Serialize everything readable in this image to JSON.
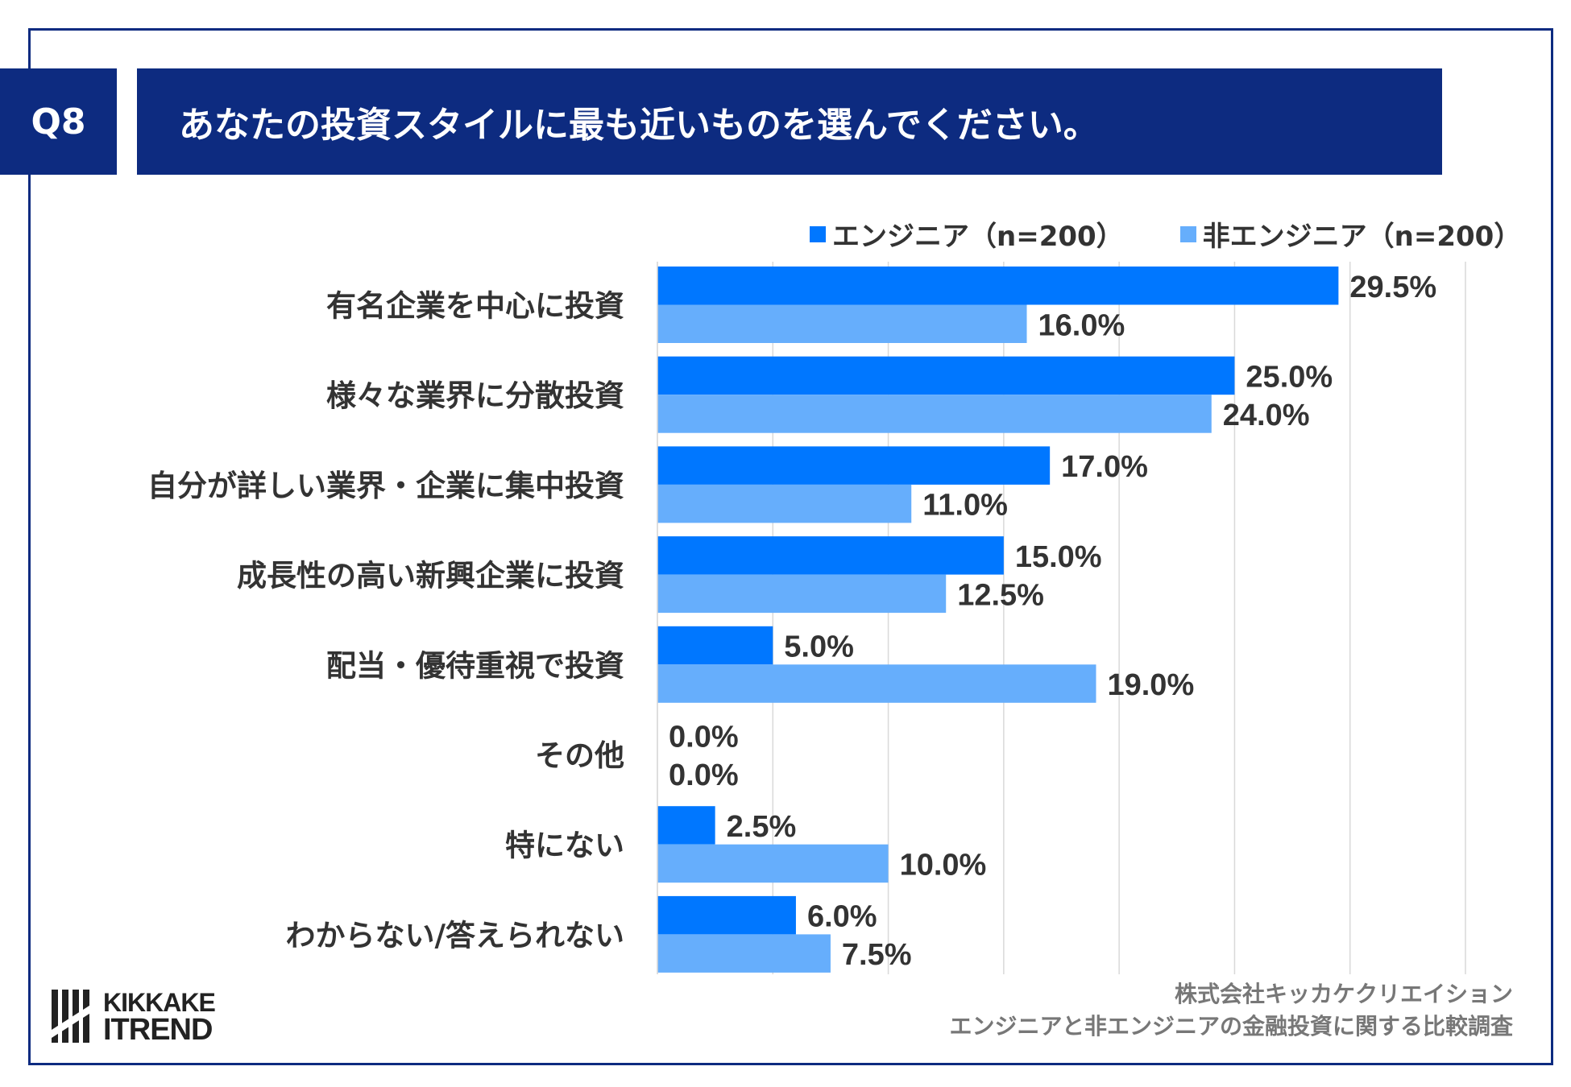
{
  "header": {
    "q_number": "Q8",
    "question": "あなたの投資スタイルに最も近いものを選んでください。"
  },
  "colors": {
    "navy": "#0d2b80",
    "engineer": "#0077ff",
    "non_engineer": "#66aefc"
  },
  "chart_data": {
    "type": "bar",
    "orientation": "horizontal",
    "categories": [
      "有名企業を中心に投資",
      "様々な業界に分散投資",
      "自分が詳しい業界・企業に集中投資",
      "成長性の高い新興企業に投資",
      "配当・優待重視で投資",
      "その他",
      "特にない",
      "わからない/答えられない"
    ],
    "series": [
      {
        "name": "エンジニア（n=200）",
        "values": [
          29.5,
          25.0,
          17.0,
          15.0,
          5.0,
          0.0,
          2.5,
          6.0
        ]
      },
      {
        "name": "非エンジニア（n=200）",
        "values": [
          16.0,
          24.0,
          11.0,
          12.5,
          19.0,
          0.0,
          10.0,
          7.5
        ]
      }
    ],
    "value_suffix": "%",
    "xlim": [
      0,
      35
    ],
    "grid": true,
    "legend": "top-right"
  },
  "footer": {
    "company": "株式会社キッカケクリエイション",
    "survey": "エンジニアと非エンジニアの金融投資に関する比較調査"
  },
  "logo": {
    "line1": "KIKKAKE",
    "line2": "ITREND"
  }
}
